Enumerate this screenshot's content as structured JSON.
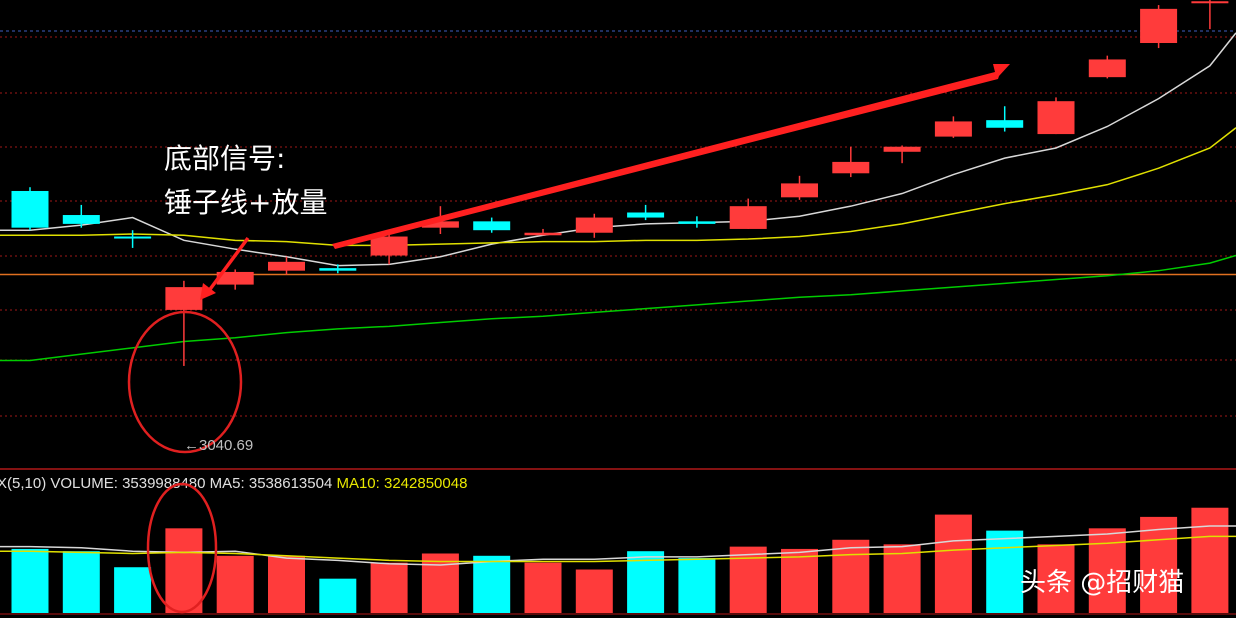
{
  "chart_data": [
    {
      "type": "candlestick",
      "price_range": [
        2960,
        3330
      ],
      "candles": [
        {
          "open": 3179,
          "close": 3150,
          "high": 3182,
          "low": 3148,
          "color": "up-cyan"
        },
        {
          "open": 3160,
          "close": 3153,
          "high": 3168,
          "low": 3150,
          "color": "up-cyan"
        },
        {
          "open": 3143,
          "close": 3142,
          "high": 3148,
          "low": 3134,
          "color": "up-cyan"
        },
        {
          "open": 3103,
          "close": 3085,
          "high": 3108,
          "low": 3040.69,
          "color": "red"
        },
        {
          "open": 3105,
          "close": 3115,
          "high": 3117,
          "low": 3101,
          "color": "red"
        },
        {
          "open": 3116,
          "close": 3123,
          "high": 3127,
          "low": 3113,
          "color": "red"
        },
        {
          "open": 3116,
          "close": 3118,
          "high": 3121,
          "low": 3114,
          "color": "up-cyan"
        },
        {
          "open": 3128,
          "close": 3143,
          "high": 3148,
          "low": 3121,
          "color": "red"
        },
        {
          "open": 3150,
          "close": 3155,
          "high": 3167,
          "low": 3145,
          "color": "red"
        },
        {
          "open": 3155,
          "close": 3148,
          "high": 3158,
          "low": 3146,
          "color": "up-cyan"
        },
        {
          "open": 3144,
          "close": 3146,
          "high": 3149,
          "low": 3144,
          "color": "red"
        },
        {
          "open": 3146,
          "close": 3158,
          "high": 3161,
          "low": 3142,
          "color": "red"
        },
        {
          "open": 3162,
          "close": 3158,
          "high": 3168,
          "low": 3156,
          "color": "up-cyan"
        },
        {
          "open": 3153,
          "close": 3155,
          "high": 3159,
          "low": 3150,
          "color": "up-cyan"
        },
        {
          "open": 3149,
          "close": 3167,
          "high": 3173,
          "low": 3149,
          "color": "red"
        },
        {
          "open": 3174,
          "close": 3185,
          "high": 3191,
          "low": 3172,
          "color": "red"
        },
        {
          "open": 3193,
          "close": 3202,
          "high": 3214,
          "low": 3190,
          "color": "red"
        },
        {
          "open": 3210,
          "close": 3214,
          "high": 3215,
          "low": 3201,
          "color": "red"
        },
        {
          "open": 3222,
          "close": 3234,
          "high": 3238,
          "low": 3221,
          "color": "red"
        },
        {
          "open": 3229,
          "close": 3235,
          "high": 3246,
          "low": 3226,
          "color": "up-cyan"
        },
        {
          "open": 3224,
          "close": 3250,
          "high": 3253,
          "low": 3224,
          "color": "red"
        },
        {
          "open": 3269,
          "close": 3283,
          "high": 3286,
          "low": 3268,
          "color": "red"
        },
        {
          "open": 3296,
          "close": 3323,
          "high": 3326,
          "low": 3292,
          "color": "red"
        },
        {
          "open": 3329,
          "close": 3329,
          "high": 3339,
          "low": 3307,
          "color": "red"
        }
      ],
      "ma_lines": [
        {
          "color": "#d8d8d8",
          "values": [
            3148,
            3152,
            3158,
            3140,
            3133,
            3127,
            3120,
            3121,
            3127,
            3137,
            3144,
            3150,
            3153,
            3154,
            3155,
            3159,
            3167,
            3177,
            3192,
            3205,
            3213,
            3230,
            3252,
            3278
          ]
        },
        {
          "color": "#e0e000",
          "values": [
            3144,
            3144,
            3145,
            3144,
            3140,
            3139,
            3136,
            3136,
            3137,
            3138,
            3139,
            3139,
            3140,
            3140,
            3141,
            3143,
            3147,
            3153,
            3161,
            3169,
            3176,
            3184,
            3197,
            3213
          ]
        },
        {
          "color": "#00cc00",
          "values": [
            3045,
            3050,
            3055,
            3060,
            3063,
            3067,
            3070,
            3072,
            3075,
            3078,
            3080,
            3083,
            3086,
            3089,
            3092,
            3095,
            3097,
            3100,
            3103,
            3106,
            3109,
            3112,
            3116,
            3122
          ]
        }
      ],
      "horizontal_line": {
        "color": "#e07020",
        "value": 3113
      },
      "grid": true,
      "low_label": "←3040.69",
      "annotation_lines": [
        "底部信号:",
        "锤子线+放量"
      ]
    },
    {
      "type": "bar",
      "header": {
        "prefix": "X(5,10)",
        "volume_label": "VOLUME:",
        "volume_value": "3539988480",
        "ma5_label": "MA5:",
        "ma5_value": "3538613504",
        "ma10_label": "MA10:",
        "ma10_value": "3242850048"
      },
      "values": [
        2800,
        2700,
        2000,
        3700,
        2500,
        2500,
        1500,
        2200,
        2600,
        2500,
        2200,
        1900,
        2700,
        2400,
        2900,
        2800,
        3200,
        3000,
        4300,
        3600,
        3000,
        3700,
        4200,
        4600
      ],
      "colors": [
        "up-cyan",
        "up-cyan",
        "up-cyan",
        "red",
        "red",
        "red",
        "up-cyan",
        "red",
        "red",
        "up-cyan",
        "red",
        "red",
        "up-cyan",
        "up-cyan",
        "red",
        "red",
        "red",
        "red",
        "red",
        "up-cyan",
        "red",
        "red",
        "red",
        "red"
      ],
      "ma_lines": [
        {
          "color": "#d8d8d8",
          "values": [
            2900,
            2850,
            2700,
            2650,
            2700,
            2400,
            2300,
            2150,
            2100,
            2250,
            2350,
            2350,
            2450,
            2450,
            2550,
            2650,
            2850,
            2900,
            3150,
            3250,
            3350,
            3450,
            3650,
            3800
          ]
        },
        {
          "color": "#e0e000",
          "values": [
            2700,
            2650,
            2600,
            2650,
            2600,
            2500,
            2400,
            2300,
            2250,
            2250,
            2250,
            2250,
            2300,
            2350,
            2400,
            2450,
            2550,
            2600,
            2750,
            2850,
            2950,
            3050,
            3200,
            3350
          ]
        }
      ],
      "ylim": [
        0,
        5200
      ]
    }
  ],
  "colors": {
    "red": "#ff3b3b",
    "up-cyan": "#00ffff",
    "grid": "#a01818",
    "arrow": "#ff2020",
    "circle": "#e02020"
  },
  "watermark": "头条 @招财猫"
}
